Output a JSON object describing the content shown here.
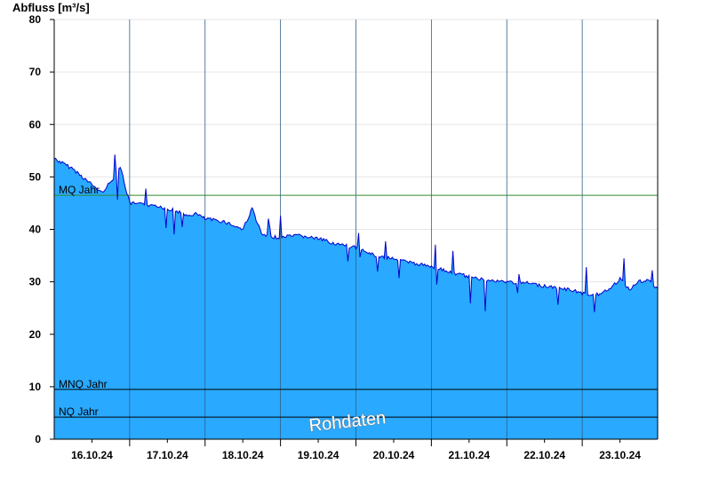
{
  "chart_data": {
    "type": "area",
    "ylabel": "Abfluss [m³/s]",
    "ylim": [
      0,
      80
    ],
    "yticks": [
      0,
      10,
      20,
      30,
      40,
      50,
      60,
      70,
      80
    ],
    "grid": true,
    "x_range": [
      "2024-10-15T12:00",
      "2024-10-23T12:00"
    ],
    "x_tick_labels": [
      "16.10.24",
      "17.10.24",
      "18.10.24",
      "19.10.24",
      "20.10.24",
      "21.10.24",
      "22.10.24",
      "23.10.24"
    ],
    "day_separators": [
      "2024-10-16T12:00",
      "2024-10-17T12:00",
      "2024-10-18T12:00",
      "2024-10-19T12:00",
      "2024-10-20T12:00",
      "2024-10-21T12:00",
      "2024-10-22T12:00"
    ],
    "reference_lines": [
      {
        "label": "MQ Jahr",
        "value": 46.5,
        "color": "#2e8b2e"
      },
      {
        "label": "MNQ Jahr",
        "value": 9.5,
        "color": "#000000"
      },
      {
        "label": "NQ Jahr",
        "value": 4.2,
        "color": "#000000"
      }
    ],
    "series": [
      {
        "fill_color": "#29a9ff",
        "line_color": "#0000cc",
        "x": [
          "2024-10-15T12:00",
          "2024-10-15T18:00",
          "2024-10-16T00:00",
          "2024-10-16T03:00",
          "2024-10-16T06:00",
          "2024-10-16T09:00",
          "2024-10-16T12:00",
          "2024-10-16T15:00",
          "2024-10-16T18:00",
          "2024-10-17T00:00",
          "2024-10-17T03:00",
          "2024-10-17T06:00",
          "2024-10-17T09:00",
          "2024-10-17T12:00",
          "2024-10-17T18:00",
          "2024-10-18T00:00",
          "2024-10-18T03:00",
          "2024-10-18T06:00",
          "2024-10-18T09:00",
          "2024-10-18T12:00",
          "2024-10-18T18:00",
          "2024-10-19T00:00",
          "2024-10-19T06:00",
          "2024-10-19T09:00",
          "2024-10-19T12:00",
          "2024-10-19T18:00",
          "2024-10-20T00:00",
          "2024-10-20T06:00",
          "2024-10-20T12:00",
          "2024-10-20T18:00",
          "2024-10-21T00:00",
          "2024-10-21T06:00",
          "2024-10-21T12:00",
          "2024-10-21T18:00",
          "2024-10-22T00:00",
          "2024-10-22T03:00",
          "2024-10-22T06:00",
          "2024-10-22T09:00",
          "2024-10-22T12:00",
          "2024-10-22T18:00",
          "2024-10-23T00:00",
          "2024-10-23T03:00",
          "2024-10-23T06:00",
          "2024-10-23T09:00",
          "2024-10-23T12:00"
        ],
        "values": [
          53.5,
          51.5,
          48.5,
          47.0,
          49.0,
          52.0,
          45.0,
          44.8,
          44.5,
          44.0,
          43.5,
          42.5,
          43.0,
          42.0,
          41.5,
          40.0,
          44.0,
          39.0,
          38.5,
          38.5,
          38.8,
          38.2,
          37.2,
          36.8,
          36.5,
          35.0,
          34.5,
          33.5,
          33.0,
          31.8,
          31.0,
          30.2,
          30.0,
          29.8,
          29.2,
          29.0,
          28.6,
          28.4,
          27.8,
          27.5,
          30.5,
          28.6,
          30.0,
          30.2,
          28.8
        ]
      }
    ]
  },
  "watermark": "Rohdaten"
}
